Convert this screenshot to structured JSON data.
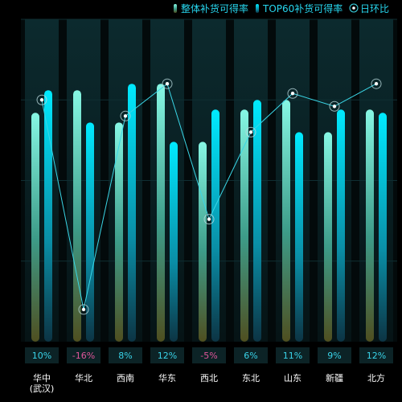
{
  "chart_data": {
    "type": "bar",
    "categories": [
      "华中\n(武汉)",
      "华北",
      "西南",
      "华东",
      "西北",
      "东北",
      "山东",
      "新疆",
      "北方"
    ],
    "series": [
      {
        "name": "整体补货可得率",
        "type": "bar",
        "values": [
          71,
          78,
          68,
          80,
          62,
          72,
          75,
          65,
          72
        ]
      },
      {
        "name": "TOP60补货可得率",
        "type": "bar",
        "values": [
          78,
          68,
          80,
          62,
          72,
          75,
          65,
          72,
          71
        ]
      },
      {
        "name": "日环比",
        "type": "line",
        "values": [
          75,
          10,
          70,
          80,
          38,
          65,
          77,
          73,
          80
        ]
      }
    ],
    "change_labels": [
      "10%",
      "-16%",
      "8%",
      "12%",
      "-5%",
      "6%",
      "11%",
      "9%",
      "12%"
    ],
    "ylim": [
      0,
      100
    ],
    "grid": true,
    "legend_position": "top-right",
    "colors": {
      "bar1_top": "#7ff5e0",
      "bar1_bottom": "#5a5a22",
      "bar2_top": "#00e6ff",
      "bar2_bottom": "#0b3a4a",
      "line": "#3ad6e6",
      "positive_label": "#39d3e8",
      "negative_label": "#e0559a",
      "column_bg": "#0a2226"
    }
  }
}
